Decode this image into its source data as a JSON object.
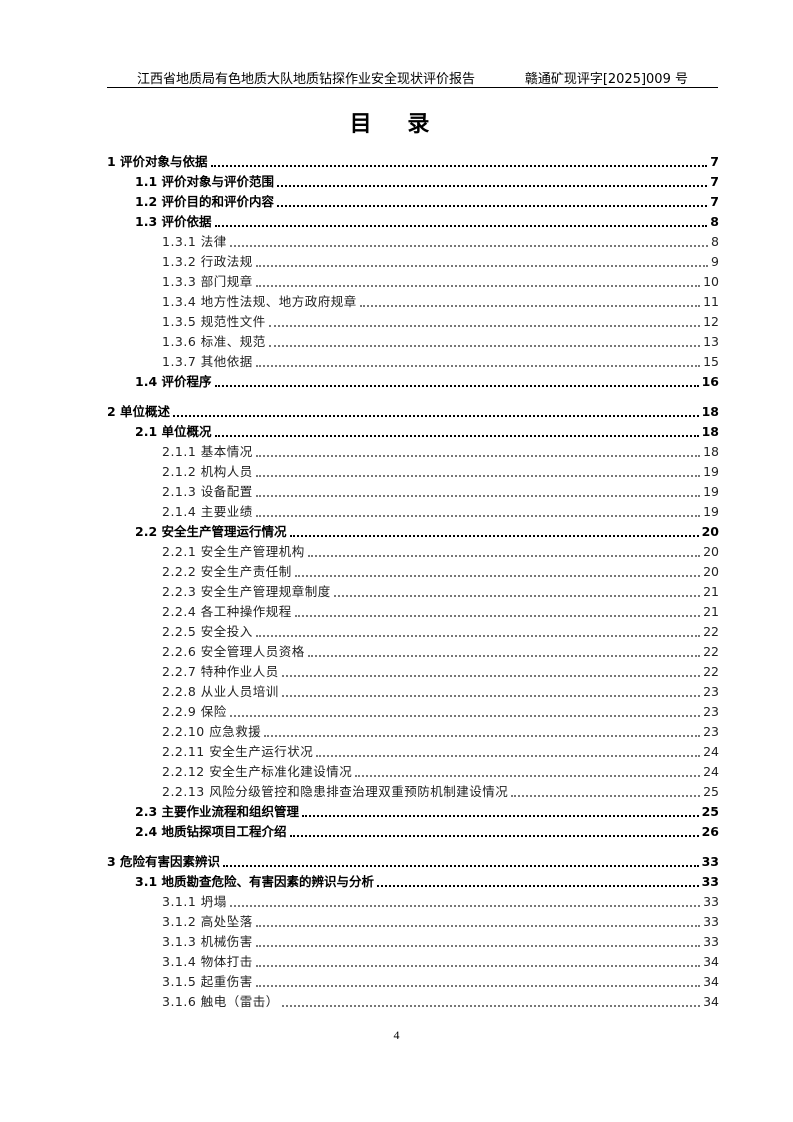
{
  "header": {
    "left": "江西省地质局有色地质大队地质钻探作业安全现状评价报告",
    "right": "赣通矿现评字[2025]009 号"
  },
  "title": "目  录",
  "toc": [
    {
      "level": 1,
      "text": "1 评价对象与依据",
      "page": "7"
    },
    {
      "level": 2,
      "text": "1.1 评价对象与评价范围",
      "page": "7"
    },
    {
      "level": 2,
      "text": "1.2 评价目的和评价内容",
      "page": "7"
    },
    {
      "level": 2,
      "text": "1.3 评价依据",
      "page": "8"
    },
    {
      "level": 3,
      "text": "1.3.1 法律",
      "page": "8"
    },
    {
      "level": 3,
      "text": "1.3.2 行政法规",
      "page": "9"
    },
    {
      "level": 3,
      "text": "1.3.3 部门规章",
      "page": "10"
    },
    {
      "level": 3,
      "text": "1.3.4 地方性法规、地方政府规章",
      "page": "11"
    },
    {
      "level": 3,
      "text": "1.3.5 规范性文件",
      "page": "12"
    },
    {
      "level": 3,
      "text": "1.3.6 标准、规范",
      "page": "13"
    },
    {
      "level": 3,
      "text": "1.3.7 其他依据",
      "page": "15"
    },
    {
      "level": 2,
      "text": "1.4 评价程序",
      "page": "16"
    },
    {
      "level": 1,
      "text": "2 单位概述",
      "page": "18"
    },
    {
      "level": 2,
      "text": "2.1 单位概况",
      "page": "18"
    },
    {
      "level": 3,
      "text": "2.1.1 基本情况",
      "page": "18"
    },
    {
      "level": 3,
      "text": "2.1.2 机构人员",
      "page": "19"
    },
    {
      "level": 3,
      "text": "2.1.3 设备配置",
      "page": "19"
    },
    {
      "level": 3,
      "text": "2.1.4 主要业绩",
      "page": "19"
    },
    {
      "level": 2,
      "text": "2.2 安全生产管理运行情况",
      "page": "20"
    },
    {
      "level": 3,
      "text": "2.2.1 安全生产管理机构",
      "page": "20"
    },
    {
      "level": 3,
      "text": "2.2.2 安全生产责任制",
      "page": "20"
    },
    {
      "level": 3,
      "text": "2.2.3 安全生产管理规章制度",
      "page": "21"
    },
    {
      "level": 3,
      "text": "2.2.4 各工种操作规程",
      "page": "21"
    },
    {
      "level": 3,
      "text": "2.2.5 安全投入",
      "page": "22"
    },
    {
      "level": 3,
      "text": "2.2.6 安全管理人员资格",
      "page": "22"
    },
    {
      "level": 3,
      "text": "2.2.7 特种作业人员",
      "page": "22"
    },
    {
      "level": 3,
      "text": "2.2.8 从业人员培训",
      "page": "23"
    },
    {
      "level": 3,
      "text": "2.2.9 保险",
      "page": "23"
    },
    {
      "level": 3,
      "text": "2.2.10 应急救援",
      "page": "23"
    },
    {
      "level": 3,
      "text": "2.2.11 安全生产运行状况",
      "page": "24"
    },
    {
      "level": 3,
      "text": "2.2.12 安全生产标准化建设情况",
      "page": "24"
    },
    {
      "level": 3,
      "text": "2.2.13 风险分级管控和隐患排查治理双重预防机制建设情况",
      "page": "25"
    },
    {
      "level": 2,
      "text": "2.3 主要作业流程和组织管理",
      "page": "25"
    },
    {
      "level": 2,
      "text": "2.4 地质钻探项目工程介绍",
      "page": "26"
    },
    {
      "level": 1,
      "text": "3 危险有害因素辨识",
      "page": "33"
    },
    {
      "level": 2,
      "text": "3.1 地质勘查危险、有害因素的辨识与分析",
      "page": "33"
    },
    {
      "level": 3,
      "text": "3.1.1 坍塌",
      "page": "33"
    },
    {
      "level": 3,
      "text": "3.1.2 高处坠落",
      "page": "33"
    },
    {
      "level": 3,
      "text": "3.1.3 机械伤害",
      "page": "33"
    },
    {
      "level": 3,
      "text": "3.1.4 物体打击",
      "page": "34"
    },
    {
      "level": 3,
      "text": "3.1.5 起重伤害",
      "page": "34"
    },
    {
      "level": 3,
      "text": "3.1.6 触电（雷击）",
      "page": "34"
    }
  ],
  "footer": {
    "page_number": "4"
  }
}
